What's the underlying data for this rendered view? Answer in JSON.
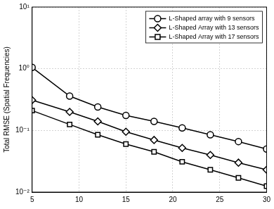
{
  "chart_data": {
    "type": "line",
    "y_label": "Total RMSE (Spatial Frequencies)",
    "x": [
      5,
      9,
      12,
      15,
      18,
      21,
      24,
      27,
      30
    ],
    "series": [
      {
        "name": "L-Shaped array with 9 sensors",
        "color": "#000000",
        "marker": "circle",
        "values": [
          1.05,
          0.36,
          0.24,
          0.175,
          0.14,
          0.11,
          0.085,
          0.066,
          0.05
        ]
      },
      {
        "name": "L-Shaped Array with 13 sensors",
        "color": "#000000",
        "marker": "diamond",
        "values": [
          0.31,
          0.2,
          0.14,
          0.095,
          0.07,
          0.052,
          0.04,
          0.03,
          0.023
        ]
      },
      {
        "name": "L-Shaped Array with 17 sensors",
        "color": "#000000",
        "marker": "square",
        "values": [
          0.21,
          0.125,
          0.085,
          0.06,
          0.045,
          0.031,
          0.023,
          0.017,
          0.0125
        ]
      }
    ],
    "xlim": [
      5,
      30
    ],
    "xticks": [
      5,
      10,
      15,
      20,
      25,
      30
    ],
    "ylim": [
      0.01,
      10
    ],
    "yticks": [
      {
        "value": 0.01,
        "label": "10⁻²"
      },
      {
        "value": 0.1,
        "label": "10⁻¹"
      },
      {
        "value": 1,
        "label": "10⁰"
      },
      {
        "value": 10,
        "label": "10¹"
      }
    ],
    "log": "y",
    "grid": true,
    "legend": "top-right"
  }
}
